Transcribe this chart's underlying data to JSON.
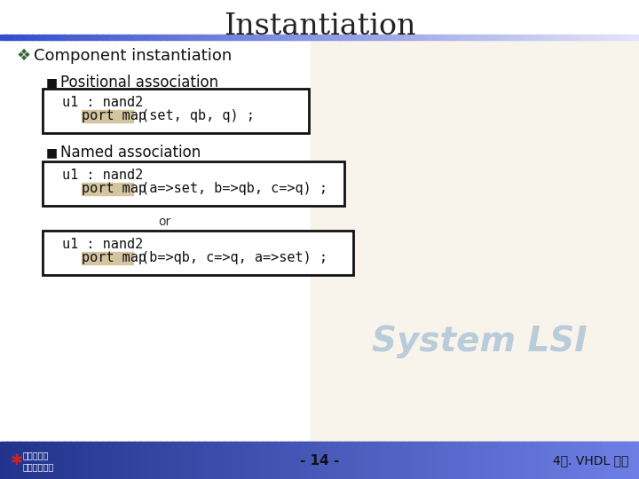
{
  "title": "Instantiation",
  "title_fontsize": 24,
  "title_font": "serif",
  "bg_color": "#ffffff",
  "header_bar_colors": [
    "#3355bb",
    "#5577cc",
    "#99aadd",
    "#dde0f0"
  ],
  "footer_bar_color": "#2244aa",
  "bullet1": "Component instantiation",
  "bullet1_symbol": "❖",
  "bullet1_color": "#336633",
  "sub_bullet1": "Positional association",
  "sub_bullet2": "Named association",
  "code_box1_line1": "u1 : nand2",
  "code_box1_portmap": "port map",
  "code_box1_rest": " (set, qb, q) ;",
  "code_box2_line1": "u1 : nand2",
  "code_box2_portmap": "port map",
  "code_box2_rest": " (a=>set, b=>qb, c=>q) ;",
  "or_text": "or",
  "code_box3_line1": "u1 : nand2",
  "code_box3_portmap": "port map",
  "code_box3_rest": " (b=>qb, c=>q, a=>set) ;",
  "portmap_bg": "#d4c4a0",
  "code_font": "monospace",
  "code_fontsize": 11,
  "footer_center": "- 14 -",
  "footer_right": "4장. VHDL 개요",
  "box_border_color": "#111111",
  "box_bg_color": "#ffffff",
  "chip_image_color": "#f0ead8",
  "system_lsi_color": "#88aacc"
}
